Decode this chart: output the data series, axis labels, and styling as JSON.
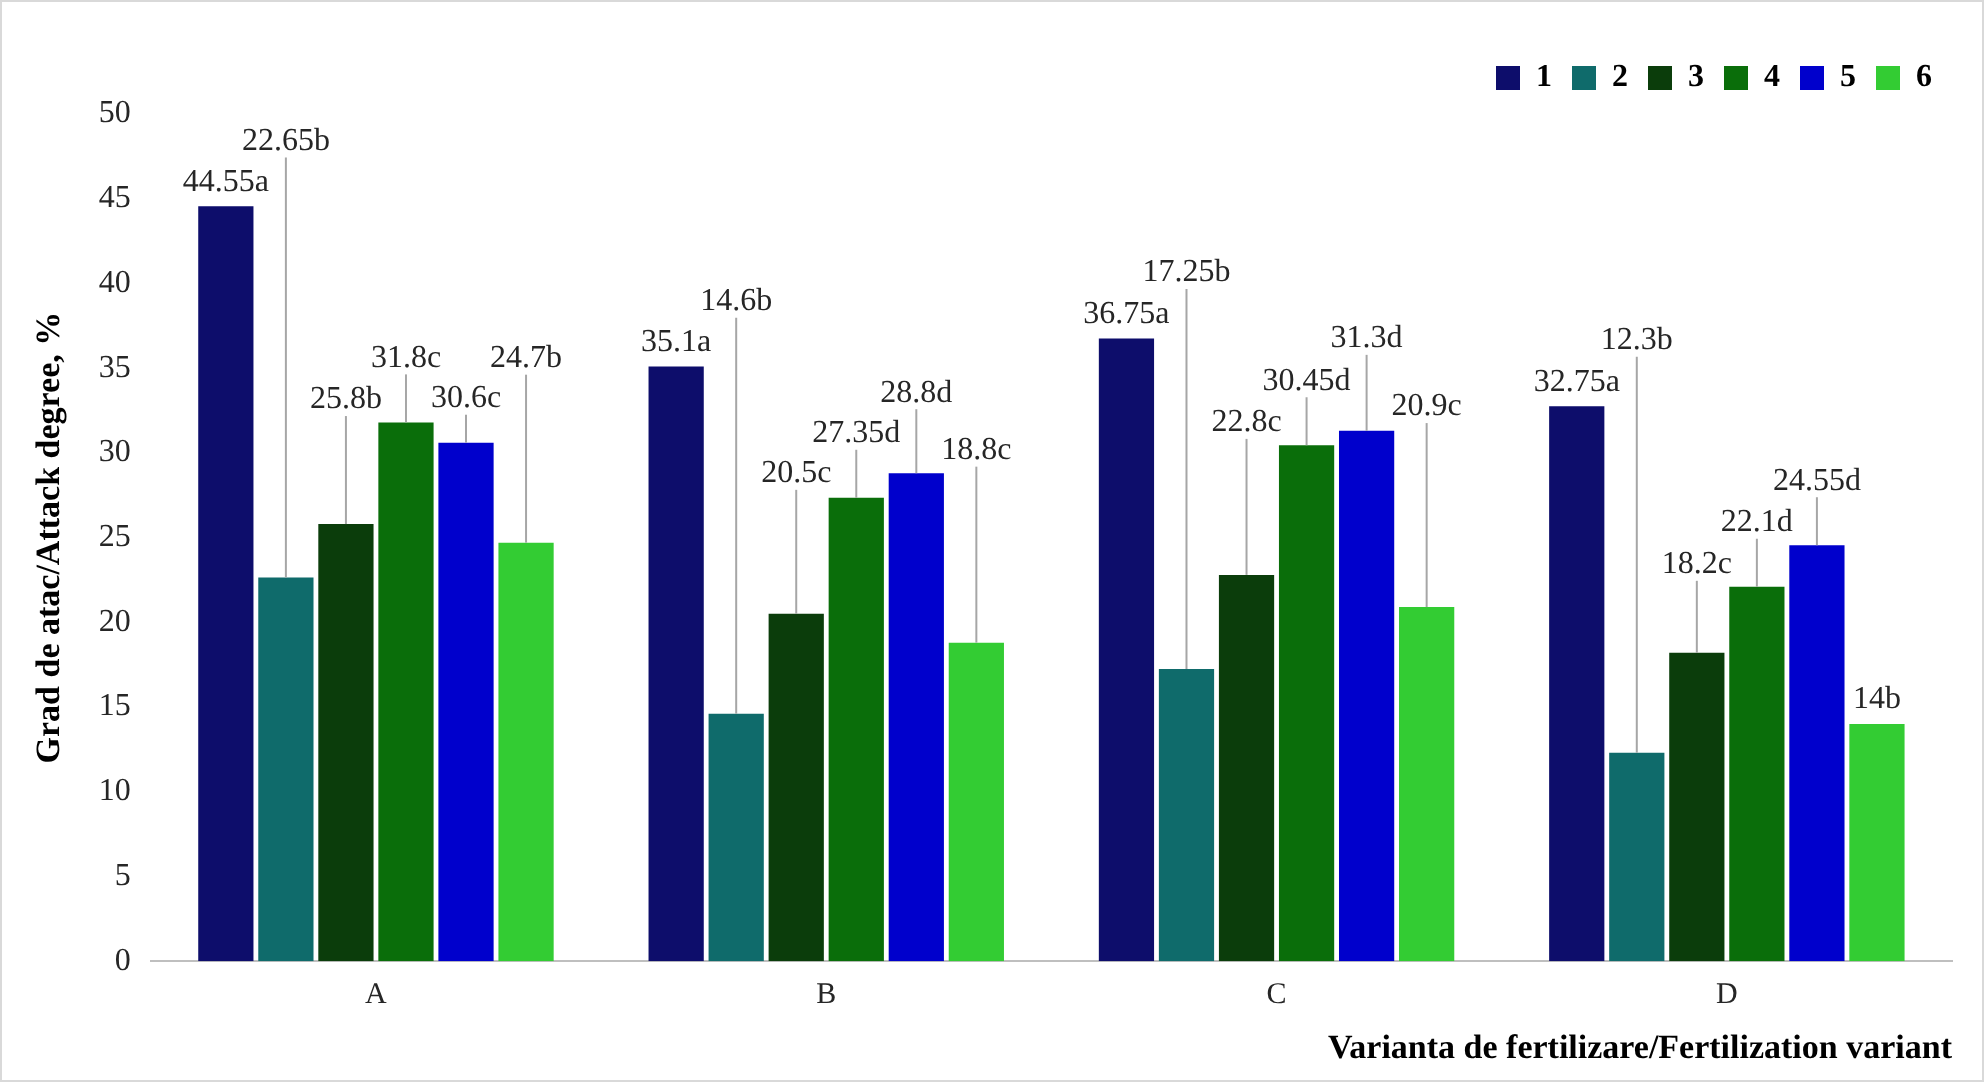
{
  "chart_data": {
    "type": "bar",
    "xlabel": "Varianta de fertilizare/Fertilization variant",
    "ylabel": "Grad de atac/Attack degree, %",
    "categories": [
      "A",
      "B",
      "C",
      "D"
    ],
    "series": [
      {
        "name": "1",
        "color": "#0d0d6b",
        "values": [
          44.55,
          35.1,
          36.75,
          32.75
        ],
        "value_labels": [
          "44.55a",
          "35.1a",
          "36.75a",
          "32.75a"
        ]
      },
      {
        "name": "2",
        "color": "#0f6b6b",
        "values": [
          22.65,
          14.6,
          17.25,
          12.3
        ],
        "value_labels": [
          "22.65b",
          "14.6b",
          "17.25b",
          "12.3b"
        ]
      },
      {
        "name": "3",
        "color": "#0b3d0b",
        "values": [
          25.8,
          20.5,
          22.8,
          18.2
        ],
        "value_labels": [
          "25.8b",
          "20.5c",
          "22.8c",
          "18.2c"
        ]
      },
      {
        "name": "4",
        "color": "#0a6e0a",
        "values": [
          31.8,
          27.35,
          30.45,
          22.1
        ],
        "value_labels": [
          "31.8c",
          "27.35d",
          "30.45d",
          "22.1d"
        ]
      },
      {
        "name": "5",
        "color": "#0000cc",
        "values": [
          30.6,
          28.8,
          31.3,
          24.55
        ],
        "value_labels": [
          "30.6c",
          "28.8d",
          "31.3d",
          "24.55d"
        ]
      },
      {
        "name": "6",
        "color": "#33cc33",
        "values": [
          24.7,
          18.8,
          20.9,
          14
        ],
        "value_labels": [
          "24.7b",
          "18.8c",
          "20.9c",
          "14b"
        ]
      }
    ],
    "ylim": [
      0,
      50
    ],
    "yticks": [
      0,
      5,
      10,
      15,
      20,
      25,
      30,
      35,
      40,
      45,
      50
    ],
    "grid": false,
    "legend": "top right"
  }
}
